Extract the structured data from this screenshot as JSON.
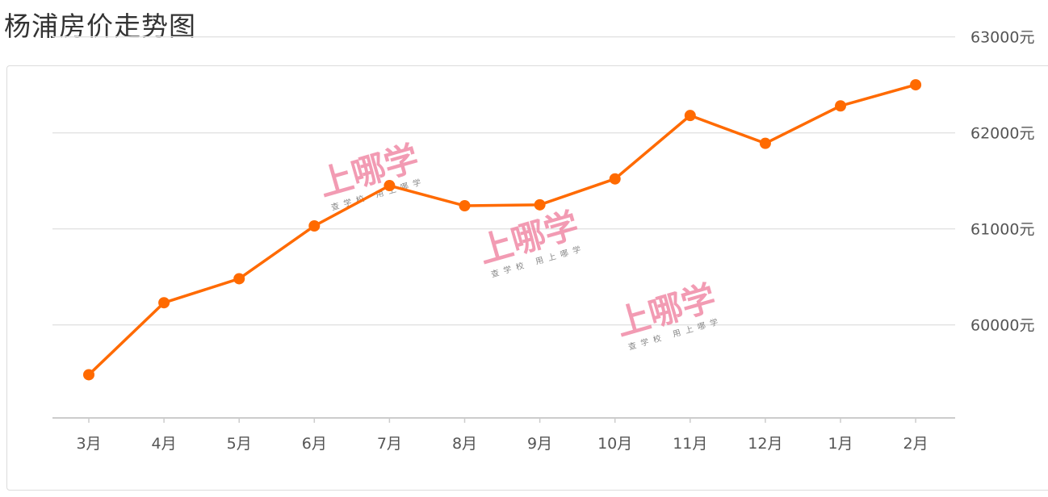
{
  "title": "杨浦房价走势图",
  "watermark": {
    "main": "上哪学",
    "sub": "查学校  用上哪学"
  },
  "colors": {
    "line": "#ff6a00",
    "grid": "#e3e3e3",
    "axis": "#cccccc"
  },
  "chart_data": {
    "type": "line",
    "categories": [
      "3月",
      "4月",
      "5月",
      "6月",
      "7月",
      "8月",
      "9月",
      "10月",
      "11月",
      "12月",
      "1月",
      "2月"
    ],
    "series": [
      {
        "values": [
          59480,
          60230,
          60480,
          61030,
          61450,
          61240,
          61250,
          61520,
          62180,
          61890,
          62280,
          62500
        ]
      }
    ],
    "ylim": [
      59030,
      63030
    ],
    "yticks": [
      60000,
      61000,
      62000,
      63000
    ],
    "ytick_labels": [
      "60000元",
      "61000元",
      "62000元",
      "63000元"
    ],
    "grid": true,
    "y_axis_position": "right"
  }
}
